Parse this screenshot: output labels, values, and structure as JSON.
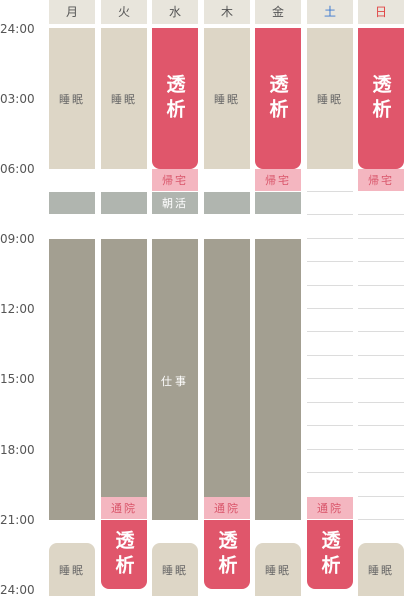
{
  "days": [
    "月",
    "火",
    "水",
    "木",
    "金",
    "土",
    "日"
  ],
  "times": [
    "24:00",
    "03:00",
    "06:00",
    "09:00",
    "12:00",
    "15:00",
    "18:00",
    "21:00",
    "24:00"
  ],
  "labels": {
    "sleep": "睡眠",
    "dialysis": "透析",
    "return_home": "帰宅",
    "morning": "朝活",
    "work": "仕事",
    "hospital": "通院"
  },
  "colors": {
    "sleep": "#ddd6c6",
    "dialysis": "#e0566b",
    "pink_label": "#f4b6c0",
    "morning": "#b0b5af",
    "work": "#a39f91",
    "saturday": "#3a78d0",
    "sunday": "#e04545"
  }
}
